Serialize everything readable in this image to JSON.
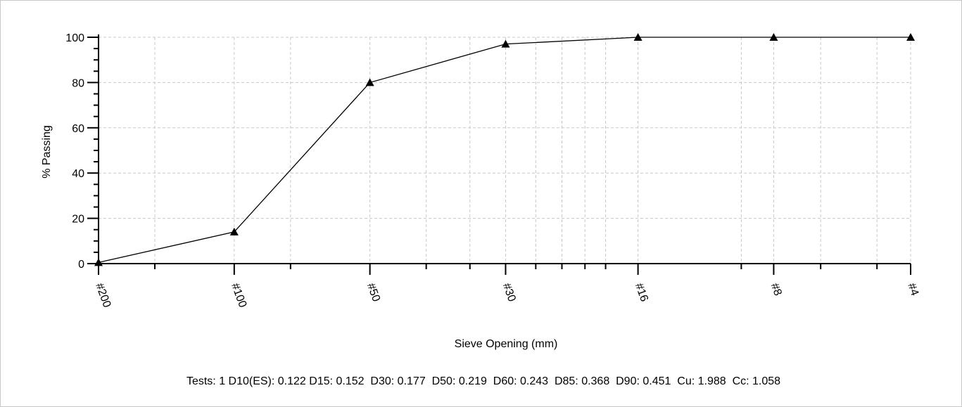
{
  "chart_data": {
    "type": "line",
    "title": "",
    "xlabel": "Sieve Opening (mm)",
    "ylabel": "% Passing",
    "x_scale": "log",
    "xlim": [
      0.075,
      4.75
    ],
    "ylim": [
      0,
      100
    ],
    "y_ticks": [
      0,
      20,
      40,
      60,
      80,
      100
    ],
    "x_tick_values": [
      0.075,
      0.15,
      0.3,
      0.6,
      1.18,
      2.36,
      4.75
    ],
    "x_tick_labels": [
      "#200",
      "#100",
      "#50",
      "#30",
      "#16",
      "#8",
      "#4"
    ],
    "grid": true,
    "series": [
      {
        "x": [
          0.075,
          0.15,
          0.3,
          0.6,
          1.18,
          2.36,
          4.75
        ],
        "y": [
          0.5,
          14,
          80,
          97,
          100,
          100,
          100
        ],
        "marker": "triangle",
        "color": "#000000"
      }
    ],
    "footer": "Tests: 1 D10(ES): 0.122 D15: 0.152  D30: 0.177  D50: 0.219  D60: 0.243  D85: 0.368  D90: 0.451  Cu: 1.988  Cc: 1.058"
  }
}
